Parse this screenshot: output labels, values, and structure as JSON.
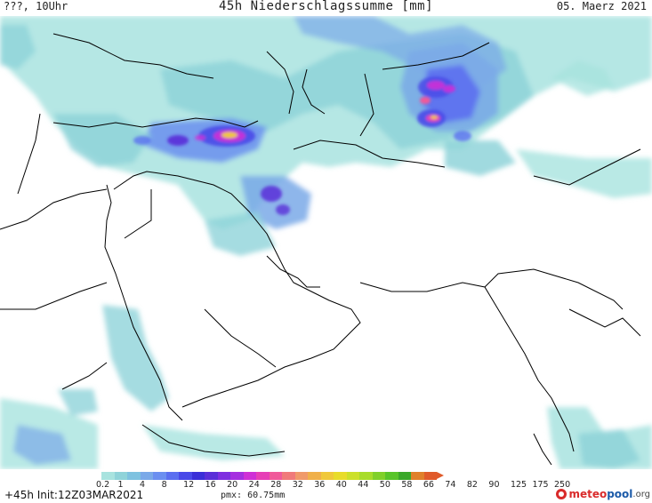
{
  "header": {
    "left": "???, 10Uhr",
    "title": "45h Niederschlagssumme [mm]",
    "right": "05. Maerz 2021"
  },
  "legend": {
    "colors": [
      "#a8e3df",
      "#8fd3d9",
      "#7ec2e0",
      "#7aa9e8",
      "#6b8ff0",
      "#5b6ff0",
      "#4a4ae8",
      "#3b2fd8",
      "#5a2fd8",
      "#7e2fe0",
      "#a52fe0",
      "#cf2fd6",
      "#e63fb6",
      "#f05a9a",
      "#f07a7a",
      "#f09a6a",
      "#f0b04a",
      "#f0c83a",
      "#e8dc2a",
      "#cce02a",
      "#a8dc2a",
      "#80d02a",
      "#58c42a",
      "#3aa82a",
      "#e0802a",
      "#e05a2a"
    ],
    "tick_labels": [
      "0.2",
      "1",
      "4",
      "8",
      "12",
      "16",
      "20",
      "24",
      "28",
      "32",
      "36",
      "40",
      "44",
      "50",
      "58",
      "66",
      "74",
      "82",
      "90",
      "125",
      "175",
      "250"
    ]
  },
  "footer": {
    "init": "+45h Init:12Z03MAR2021",
    "pmx": "pmx: 60.75mm",
    "logo_part1": "meteo",
    "logo_part2": "pool",
    "logo_part3": ".org"
  }
}
